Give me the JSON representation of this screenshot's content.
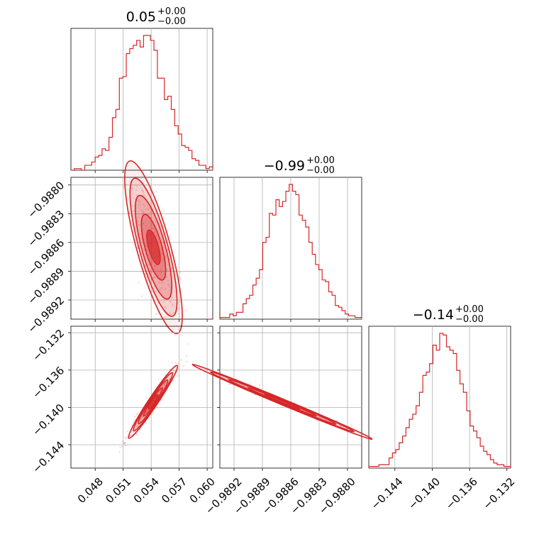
{
  "colors": {
    "series": "#d62728",
    "frame": "#000000",
    "grid": "#b0b0b0"
  },
  "chart_data": [
    {
      "type": "histogram",
      "panel": "p00",
      "parameter_index": 0,
      "title": {
        "median": "0.05",
        "plus": "+0.00",
        "minus": "−0.00"
      },
      "bin_range": [
        0.0454,
        0.0606
      ],
      "counts": [
        0,
        1,
        1,
        0,
        3,
        3,
        5,
        8,
        9,
        13,
        12,
        20,
        32,
        37,
        56,
        57,
        71,
        74,
        76,
        79,
        75,
        82,
        82,
        79,
        73,
        56,
        56,
        43,
        45,
        37,
        27,
        22,
        15,
        14,
        12,
        7,
        6,
        3,
        3,
        1,
        2
      ]
    },
    {
      "type": "histogram",
      "panel": "p11",
      "parameter_index": 1,
      "title": {
        "median": "−0.99",
        "plus": "+0.00",
        "minus": "−0.00"
      },
      "bin_range": [
        -0.98935,
        -0.98785
      ],
      "counts": [
        1,
        1,
        1,
        3,
        2,
        4,
        4,
        9,
        12,
        14,
        20,
        24,
        29,
        45,
        48,
        62,
        61,
        70,
        66,
        69,
        75,
        79,
        75,
        73,
        61,
        58,
        54,
        45,
        38,
        32,
        29,
        23,
        22,
        16,
        14,
        8,
        7,
        5,
        3,
        2,
        2,
        1,
        1
      ]
    },
    {
      "type": "histogram",
      "panel": "p22",
      "parameter_index": 2,
      "title": {
        "median": "−0.14",
        "plus": "+0.00",
        "minus": "−0.00"
      },
      "bin_range": [
        -0.1468,
        -0.1316
      ],
      "counts": [
        1,
        1,
        1,
        2,
        2,
        2,
        6,
        9,
        11,
        15,
        19,
        24,
        29,
        32,
        37,
        45,
        55,
        57,
        62,
        73,
        70,
        80,
        79,
        72,
        70,
        68,
        58,
        50,
        45,
        34,
        25,
        22,
        18,
        13,
        10,
        8,
        5,
        3,
        2,
        2,
        1,
        1
      ]
    },
    {
      "type": "contour",
      "panel": "p10",
      "x_parameter": 0,
      "y_parameter": 1,
      "center": [
        0.05425,
        -0.98865
      ],
      "principal_axis": [
        0.00255,
        -0.0009
      ],
      "minor_width": [
        0.00045,
        0.00017
      ],
      "samples_range": {
        "x": [
          0.047,
          0.06
        ],
        "y": [
          -0.98935,
          -0.988
        ]
      }
    },
    {
      "type": "contour",
      "panel": "p20",
      "x_parameter": 0,
      "y_parameter": 2,
      "center": [
        0.0542,
        -0.1394
      ],
      "principal_axis": [
        0.0026,
        0.0039
      ],
      "minor_width": [
        0.0004,
        -0.0003
      ],
      "samples_range": {
        "x": [
          0.047,
          0.06
        ],
        "y": [
          -0.146,
          -0.133
        ]
      }
    },
    {
      "type": "contour",
      "panel": "p21",
      "x_parameter": 1,
      "y_parameter": 2,
      "center": [
        -0.98869,
        -0.1394
      ],
      "principal_axis": [
        0.00095,
        -0.004
      ],
      "minor_width": [
        3e-05,
        6e-05
      ],
      "samples_range": {
        "x": [
          -0.98935,
          -0.98785
        ],
        "y": [
          -0.146,
          -0.133
        ]
      }
    }
  ],
  "axes": {
    "param0": {
      "range": [
        0.0454,
        0.0606
      ],
      "ticks": [
        0.048,
        0.051,
        0.054,
        0.057,
        0.06
      ],
      "tick_labels": [
        "0.048",
        "0.051",
        "0.054",
        "0.057",
        "0.060"
      ]
    },
    "param1": {
      "range": [
        -0.98935,
        -0.98785
      ],
      "ticks": [
        -0.9892,
        -0.9889,
        -0.9886,
        -0.9883,
        -0.988
      ],
      "tick_labels": [
        "−0.9892",
        "−0.9889",
        "−0.9886",
        "−0.9883",
        "−0.9880"
      ]
    },
    "param1_vertical": {
      "range": [
        -0.9894,
        -0.98792
      ],
      "ticks": [
        -0.988,
        -0.9883,
        -0.9886,
        -0.9889,
        -0.9892
      ],
      "tick_labels": [
        "−0.9880",
        "−0.9883",
        "−0.9886",
        "−0.9889",
        "−0.9892"
      ]
    },
    "param2": {
      "range": [
        -0.1468,
        -0.1316
      ],
      "ticks": [
        -0.144,
        -0.14,
        -0.136,
        -0.132
      ],
      "tick_labels": [
        "−0.144",
        "−0.140",
        "−0.136",
        "−0.132"
      ]
    },
    "param2_vertical": {
      "range": [
        -0.1465,
        -0.1313
      ],
      "ticks": [
        -0.132,
        -0.136,
        -0.14,
        -0.144
      ],
      "tick_labels": [
        "−0.132",
        "−0.136",
        "−0.140",
        "−0.144"
      ]
    }
  },
  "grid": true
}
